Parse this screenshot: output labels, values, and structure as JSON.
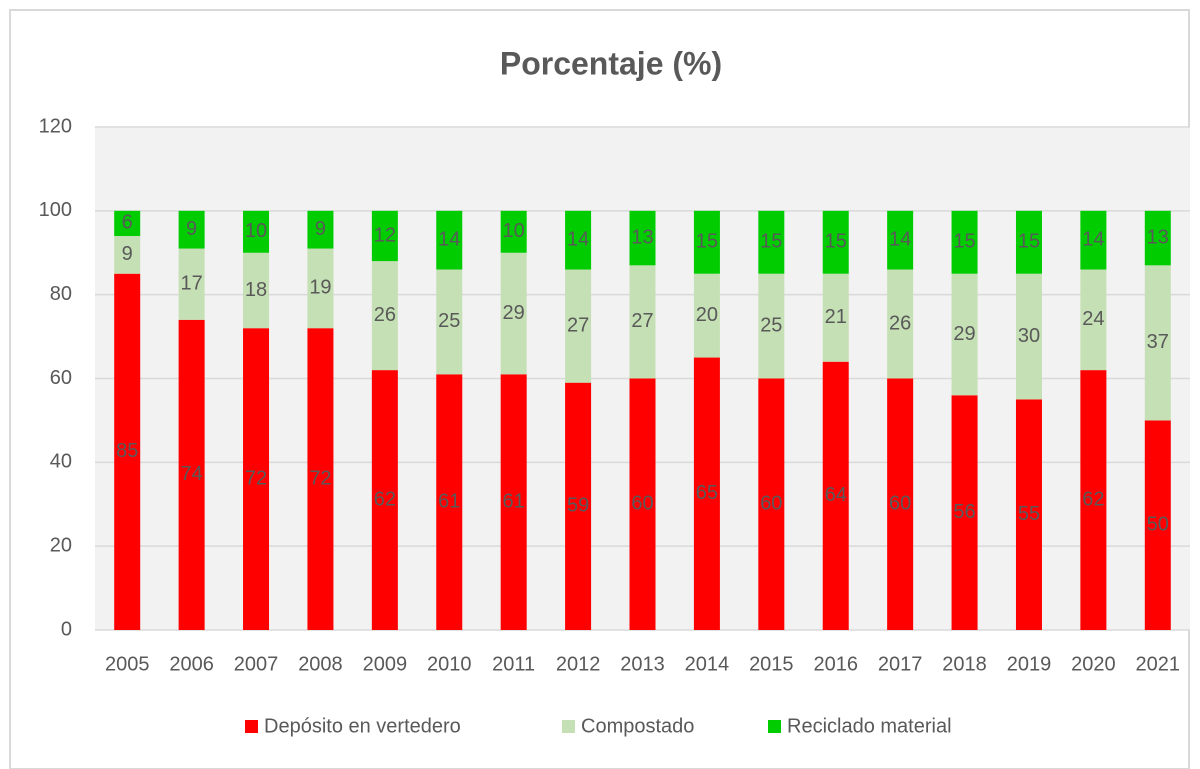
{
  "chart_data": {
    "type": "stacked_bar",
    "title": "Porcentaje (%)",
    "categories": [
      "2005",
      "2006",
      "2007",
      "2008",
      "2009",
      "2010",
      "2011",
      "2012",
      "2013",
      "2014",
      "2015",
      "2016",
      "2017",
      "2018",
      "2019",
      "2020",
      "2021"
    ],
    "series": [
      {
        "name": "Depósito en vertedero",
        "color": "#ff0000",
        "values": [
          85,
          74,
          72,
          72,
          62,
          61,
          61,
          59,
          60,
          65,
          60,
          64,
          60,
          56,
          55,
          62,
          50
        ]
      },
      {
        "name": "Compostado",
        "color": "#c5e0b4",
        "values": [
          9,
          17,
          18,
          19,
          26,
          25,
          29,
          27,
          27,
          20,
          25,
          21,
          26,
          29,
          30,
          24,
          37
        ]
      },
      {
        "name": "Reciclado material",
        "color": "#00cc00",
        "values": [
          6,
          9,
          10,
          9,
          12,
          14,
          10,
          14,
          13,
          15,
          15,
          15,
          14,
          15,
          15,
          14,
          13
        ]
      }
    ],
    "ylim": [
      0,
      120
    ],
    "yticks": [
      0,
      20,
      40,
      60,
      80,
      100,
      120
    ],
    "grid": true,
    "legend": "bottom"
  }
}
